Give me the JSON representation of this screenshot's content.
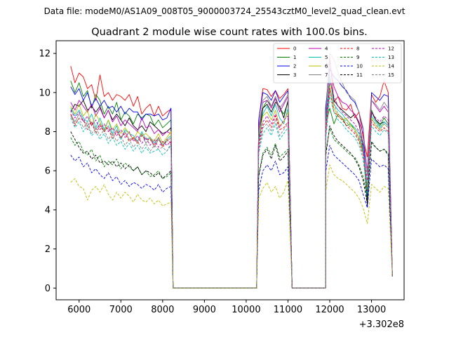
{
  "figure": {
    "suptitle": "Data file: modeM0/AS1A09_008T05_9000003724_25543cztM0_level2_quad_clean.evt",
    "title": "Quadrant 2 module wise count rates with 100.0s bins.",
    "x_offset_label": "+3.302e8"
  },
  "chart_data": {
    "type": "line",
    "title": "Quadrant 2 module wise count rates with 100.0s bins.",
    "xlabel": "",
    "ylabel": "",
    "x_offset": 330200000,
    "xlim": [
      5450,
      13780
    ],
    "ylim": [
      -0.6,
      12.65
    ],
    "xticks": [
      6000,
      7000,
      8000,
      9000,
      10000,
      11000,
      12000,
      13000
    ],
    "yticks": [
      0,
      2,
      4,
      6,
      8,
      10,
      12
    ],
    "grid": false,
    "legend_position": "top-right",
    "legend_columns": 4,
    "segments": [
      {
        "start": 5800,
        "points": 25,
        "zero_after": true
      },
      {
        "start": 10300,
        "points": 8,
        "zero_after": true
      },
      {
        "start": 11900,
        "points": 16,
        "zero_after": false
      }
    ],
    "zero_gaps": [
      [
        8250,
        10300
      ],
      [
        11100,
        11900
      ]
    ],
    "series": [
      {
        "name": "0",
        "color": "#ff0000",
        "dash": "solid",
        "seg1": [
          11.35,
          10.5,
          11.0,
          10.8,
          10.2,
          10.4,
          9.6,
          10.9,
          9.8,
          10.0,
          9.6,
          9.9,
          9.8,
          9.6,
          9.9,
          9.3,
          9.8,
          8.9,
          9.2,
          9.4,
          8.8,
          9.3,
          8.8,
          9.0,
          9.15
        ],
        "seg2": [
          8.6,
          10.2,
          10.15,
          9.8,
          10.1,
          9.7,
          9.9,
          10.2
        ],
        "seg3": [
          9.0,
          11.8,
          9.5,
          9.8,
          9.2,
          9.1,
          9.4,
          8.7,
          9.0,
          7.7,
          6.7,
          9.9,
          9.5,
          9.8,
          10.6,
          10.0
        ]
      },
      {
        "name": "1",
        "color": "#008000",
        "dash": "solid",
        "seg1": [
          10.6,
          10.0,
          10.5,
          9.8,
          10.1,
          9.2,
          9.9,
          9.6,
          8.9,
          9.3,
          8.9,
          9.5,
          8.6,
          9.0,
          8.8,
          8.4,
          8.9,
          8.7,
          8.9,
          8.8,
          8.3,
          8.6,
          8.2,
          8.4,
          8.6
        ],
        "seg2": [
          8.1,
          9.2,
          9.6,
          9.3,
          9.7,
          9.2,
          8.9,
          9.5
        ],
        "seg3": [
          8.3,
          9.2,
          8.4,
          8.9,
          8.7,
          8.3,
          8.4,
          8.1,
          7.7,
          7.0,
          5.0,
          9.1,
          8.6,
          8.3,
          8.7,
          8.4
        ]
      },
      {
        "name": "2",
        "color": "#0000ff",
        "dash": "solid",
        "seg1": [
          10.3,
          9.9,
          10.2,
          9.6,
          10.0,
          9.3,
          9.7,
          9.3,
          9.6,
          9.2,
          9.3,
          9.0,
          9.3,
          8.9,
          9.2,
          9.0,
          9.0,
          8.6,
          8.9,
          8.9,
          8.8,
          8.9,
          8.6,
          8.7,
          9.2
        ],
        "seg2": [
          8.6,
          10.0,
          9.9,
          9.6,
          10.1,
          9.5,
          9.8,
          10.1
        ],
        "seg3": [
          9.2,
          11.2,
          10.8,
          10.6,
          10.3,
          10.1,
          9.7,
          9.5,
          9.0,
          8.1,
          4.6,
          10.0,
          9.8,
          9.6,
          9.9,
          9.8
        ]
      },
      {
        "name": "3",
        "color": "#000000",
        "dash": "solid",
        "seg1": [
          9.0,
          9.4,
          9.3,
          9.6,
          9.1,
          9.3,
          9.0,
          9.3,
          8.7,
          9.1,
          8.6,
          8.9,
          8.6,
          8.3,
          8.7,
          8.3,
          8.1,
          8.3,
          8.0,
          8.5,
          8.3,
          8.1,
          7.9,
          8.0,
          8.2
        ],
        "seg2": [
          7.6,
          9.2,
          9.4,
          9.0,
          9.5,
          9.3,
          8.7,
          9.6
        ],
        "seg3": [
          8.4,
          10.8,
          9.6,
          9.3,
          9.1,
          8.9,
          8.7,
          8.9,
          8.4,
          7.3,
          4.2,
          9.0,
          8.6,
          8.4,
          8.5,
          8.3
        ]
      },
      {
        "name": "4",
        "color": "#bf00bf",
        "dash": "solid",
        "seg1": [
          9.5,
          9.1,
          9.6,
          9.3,
          9.0,
          9.4,
          8.8,
          9.2,
          8.7,
          9.1,
          8.5,
          8.8,
          8.3,
          8.6,
          8.4,
          8.2,
          8.0,
          8.7,
          8.2,
          8.3,
          7.9,
          8.1,
          7.8,
          8.0,
          7.9
        ],
        "seg2": [
          8.2,
          9.5,
          9.6,
          9.2,
          9.7,
          9.0,
          9.4,
          9.8
        ],
        "seg3": [
          8.8,
          11.6,
          10.3,
          9.8,
          9.5,
          9.4,
          9.1,
          8.9,
          8.5,
          7.9,
          6.0,
          9.6,
          9.3,
          9.0,
          9.3,
          9.0
        ]
      },
      {
        "name": "5",
        "color": "#00bfbf",
        "dash": "solid",
        "seg1": [
          9.2,
          8.8,
          9.1,
          8.7,
          8.5,
          8.9,
          8.2,
          8.7,
          8.1,
          8.6,
          7.9,
          8.3,
          7.6,
          8.1,
          7.9,
          7.8,
          7.5,
          8.0,
          7.6,
          7.7,
          7.4,
          7.7,
          7.3,
          7.6,
          7.8
        ],
        "seg2": [
          7.4,
          8.9,
          9.3,
          8.8,
          9.4,
          8.7,
          8.4,
          9.2
        ],
        "seg3": [
          8.1,
          10.9,
          9.4,
          9.1,
          8.9,
          8.6,
          8.4,
          8.2,
          7.9,
          7.1,
          5.2,
          8.8,
          8.5,
          8.2,
          8.5,
          8.3
        ]
      },
      {
        "name": "6",
        "color": "#bfbf00",
        "dash": "solid",
        "seg1": [
          9.3,
          8.9,
          9.4,
          8.8,
          9.1,
          8.3,
          8.9,
          8.5,
          8.0,
          8.6,
          8.1,
          8.4,
          7.9,
          8.2,
          7.9,
          7.6,
          8.0,
          7.8,
          7.9,
          7.7,
          7.5,
          7.9,
          7.4,
          7.7,
          8.0
        ],
        "seg2": [
          7.8,
          8.8,
          9.0,
          8.6,
          9.1,
          8.3,
          8.5,
          9.0
        ],
        "seg3": [
          7.9,
          10.4,
          9.2,
          8.8,
          8.6,
          8.7,
          8.3,
          8.1,
          7.7,
          6.9,
          5.0,
          8.7,
          8.3,
          8.1,
          8.4,
          8.2
        ]
      },
      {
        "name": "7",
        "color": "#808080",
        "dash": "solid",
        "seg1": [
          8.9,
          8.5,
          8.9,
          8.6,
          8.3,
          8.5,
          8.1,
          8.4,
          8.0,
          8.3,
          7.8,
          8.1,
          7.7,
          8.0,
          7.6,
          7.7,
          7.5,
          7.9,
          7.4,
          7.7,
          7.2,
          7.6,
          7.3,
          7.5,
          7.7
        ],
        "seg2": [
          7.9,
          9.6,
          9.8,
          9.3,
          9.8,
          9.2,
          9.5,
          9.9
        ],
        "seg3": [
          8.6,
          12.0,
          11.7,
          11.0,
          10.5,
          10.0,
          9.8,
          9.6,
          9.0,
          8.2,
          5.8,
          9.6,
          9.4,
          9.1,
          9.5,
          9.2
        ]
      },
      {
        "name": "8",
        "color": "#ff0000",
        "dash": "dashed",
        "seg1": [
          8.9,
          8.3,
          8.7,
          8.6,
          8.1,
          8.5,
          7.9,
          8.3,
          8.0,
          8.2,
          7.6,
          8.0,
          7.7,
          7.9,
          7.5,
          7.7,
          7.4,
          7.8,
          7.6,
          7.6,
          7.3,
          7.7,
          7.2,
          7.6,
          7.4
        ],
        "seg2": [
          7.2,
          8.3,
          8.6,
          8.2,
          8.8,
          8.1,
          8.2,
          8.5
        ],
        "seg3": [
          7.8,
          10.2,
          9.0,
          8.8,
          8.6,
          8.3,
          8.1,
          7.9,
          7.5,
          6.8,
          4.9,
          8.5,
          8.2,
          8.0,
          8.2,
          8.0
        ]
      },
      {
        "name": "9",
        "color": "#008000",
        "dash": "dashed",
        "seg1": [
          7.7,
          7.3,
          7.5,
          7.0,
          6.8,
          7.1,
          6.5,
          6.8,
          6.2,
          6.5,
          6.3,
          6.6,
          6.1,
          6.4,
          6.2,
          6.0,
          6.2,
          5.8,
          6.0,
          5.7,
          5.8,
          6.0,
          5.6,
          5.7,
          5.9
        ],
        "seg2": [
          5.8,
          6.9,
          7.2,
          6.8,
          7.4,
          6.7,
          6.9,
          7.1
        ],
        "seg3": [
          6.9,
          8.2,
          7.6,
          7.4,
          7.2,
          7.0,
          6.8,
          6.7,
          6.3,
          5.7,
          4.6,
          7.4,
          7.2,
          7.0,
          7.1,
          6.9
        ]
      },
      {
        "name": "10",
        "color": "#0000ff",
        "dash": "dashed",
        "seg1": [
          6.8,
          6.5,
          6.7,
          6.2,
          6.4,
          5.9,
          6.1,
          5.8,
          5.6,
          5.9,
          5.5,
          5.7,
          5.3,
          5.5,
          5.2,
          5.4,
          5.3,
          5.1,
          5.3,
          5.2,
          5.0,
          5.3,
          4.9,
          5.1,
          5.2
        ],
        "seg2": [
          5.0,
          6.0,
          6.3,
          6.0,
          6.5,
          5.8,
          5.9,
          6.2
        ],
        "seg3": [
          5.9,
          7.3,
          6.8,
          6.6,
          6.4,
          6.2,
          6.0,
          5.8,
          5.5,
          4.8,
          4.1,
          6.6,
          6.4,
          6.2,
          6.3,
          6.1
        ]
      },
      {
        "name": "11",
        "color": "#000000",
        "dash": "dashed",
        "seg1": [
          8.0,
          7.6,
          7.2,
          6.9,
          7.0,
          6.6,
          6.8,
          6.4,
          6.5,
          6.3,
          6.5,
          6.2,
          6.4,
          6.1,
          6.3,
          6.0,
          6.2,
          5.8,
          6.0,
          5.9,
          5.7,
          5.9,
          5.6,
          5.8,
          6.0
        ],
        "seg2": [
          5.7,
          6.8,
          7.1,
          6.6,
          7.3,
          6.5,
          6.7,
          7.0
        ],
        "seg3": [
          6.7,
          8.3,
          7.8,
          7.5,
          7.3,
          7.1,
          6.9,
          6.6,
          6.2,
          5.5,
          4.3,
          7.5,
          7.2,
          7.0,
          7.1,
          6.8
        ]
      },
      {
        "name": "12",
        "color": "#bf00bf",
        "dash": "dashed",
        "seg1": [
          9.1,
          8.7,
          9.0,
          8.5,
          8.8,
          8.3,
          8.6,
          8.1,
          8.4,
          8.0,
          8.2,
          7.8,
          8.1,
          7.7,
          8.0,
          7.5,
          7.8,
          7.4,
          7.7,
          7.3,
          7.6,
          7.2,
          7.5,
          7.3,
          7.5
        ],
        "seg2": [
          7.4,
          8.5,
          8.8,
          8.4,
          8.9,
          8.2,
          8.6,
          8.8
        ],
        "seg3": [
          8.0,
          10.6,
          9.8,
          9.3,
          9.0,
          8.8,
          8.6,
          8.4,
          8.0,
          7.2,
          5.5,
          9.0,
          8.7,
          8.5,
          8.8,
          8.6
        ]
      },
      {
        "name": "13",
        "color": "#00bfbf",
        "dash": "dashed",
        "seg1": [
          8.7,
          8.2,
          8.5,
          8.0,
          8.3,
          7.8,
          8.0,
          7.6,
          7.9,
          7.4,
          7.7,
          7.3,
          7.5,
          7.1,
          7.4,
          7.0,
          7.3,
          6.9,
          7.2,
          6.9,
          7.0,
          7.1,
          6.8,
          7.0,
          7.3
        ],
        "seg2": [
          6.9,
          7.9,
          8.2,
          7.8,
          8.4,
          7.6,
          7.9,
          8.2
        ],
        "seg3": [
          7.5,
          9.8,
          9.0,
          8.6,
          8.4,
          8.1,
          7.9,
          7.7,
          7.3,
          6.6,
          4.8,
          8.3,
          8.0,
          7.8,
          8.1,
          7.9
        ]
      },
      {
        "name": "14",
        "color": "#bfbf00",
        "dash": "dashed",
        "seg1": [
          5.4,
          5.6,
          5.2,
          5.1,
          4.5,
          5.0,
          5.2,
          4.9,
          5.3,
          4.8,
          4.5,
          4.9,
          4.6,
          4.9,
          4.7,
          4.4,
          4.8,
          4.5,
          4.4,
          4.6,
          4.3,
          4.5,
          4.2,
          4.3,
          4.4
        ],
        "seg2": [
          4.6,
          5.1,
          5.4,
          4.9,
          5.2,
          4.6,
          4.9,
          5.5
        ],
        "seg3": [
          4.9,
          6.3,
          5.8,
          5.6,
          5.5,
          5.3,
          5.1,
          4.9,
          4.6,
          4.1,
          3.3,
          5.3,
          5.1,
          4.9,
          5.2,
          5.1
        ]
      },
      {
        "name": "15",
        "color": "#808080",
        "dash": "dashed",
        "seg1": [
          8.8,
          8.4,
          8.7,
          8.2,
          8.5,
          7.9,
          8.2,
          7.8,
          8.1,
          7.6,
          7.9,
          7.5,
          7.8,
          7.3,
          7.6,
          7.2,
          7.5,
          7.1,
          7.4,
          7.0,
          7.3,
          7.1,
          7.2,
          7.0,
          7.4
        ],
        "seg2": [
          7.0,
          8.2,
          8.4,
          8.0,
          8.6,
          7.8,
          8.1,
          8.4
        ],
        "seg3": [
          7.7,
          10.1,
          9.4,
          8.9,
          8.7,
          8.5,
          8.2,
          8.0,
          7.6,
          6.9,
          5.1,
          8.6,
          8.4,
          8.1,
          8.4,
          8.2
        ]
      }
    ]
  }
}
